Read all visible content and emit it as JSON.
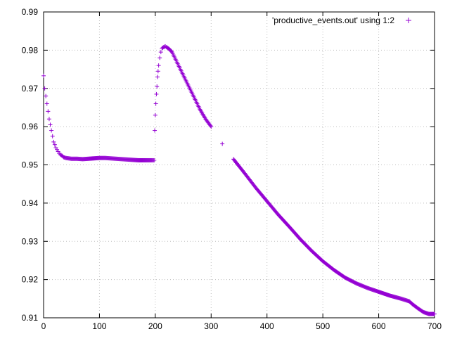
{
  "colors": {
    "series": "#9400d3",
    "grid": "#bfbfbf",
    "axis": "#000000",
    "background": "#ffffff"
  },
  "chart_data": {
    "type": "scatter",
    "title": "",
    "xlabel": "",
    "ylabel": "",
    "xlim": [
      0,
      700
    ],
    "ylim": [
      0.91,
      0.99
    ],
    "grid": true,
    "legend_position": "top-right",
    "x_ticks": [
      "0",
      "100",
      "200",
      "300",
      "400",
      "500",
      "600",
      "700"
    ],
    "y_ticks": [
      "0.91",
      "0.92",
      "0.93",
      "0.94",
      "0.95",
      "0.96",
      "0.97",
      "0.98",
      "0.99"
    ],
    "series": [
      {
        "name": "'productive_events.out' using 1:2",
        "marker": "plus",
        "x": [
          0,
          2,
          4,
          6,
          8,
          10,
          12,
          14,
          16,
          18,
          20,
          22,
          24,
          26,
          28,
          30,
          33,
          36,
          40,
          45,
          50,
          55,
          60,
          70,
          80,
          90,
          100,
          110,
          120,
          130,
          140,
          150,
          160,
          170,
          180,
          190,
          198,
          199,
          200,
          201,
          202,
          203,
          204,
          205,
          206,
          208,
          210,
          212,
          215,
          218,
          220,
          225,
          230,
          235,
          240,
          250,
          260,
          270,
          280,
          290,
          300,
          320,
          340,
          360,
          380,
          400,
          420,
          440,
          460,
          480,
          500,
          520,
          540,
          560,
          580,
          600,
          620,
          640,
          655,
          660,
          670,
          680,
          690,
          700
        ],
        "y": [
          0.9733,
          0.97,
          0.968,
          0.966,
          0.964,
          0.962,
          0.9605,
          0.959,
          0.9575,
          0.956,
          0.9553,
          0.9545,
          0.954,
          0.9535,
          0.953,
          0.9527,
          0.9524,
          0.952,
          0.9518,
          0.9517,
          0.9516,
          0.9516,
          0.9516,
          0.9515,
          0.9516,
          0.9517,
          0.9518,
          0.9518,
          0.9517,
          0.9516,
          0.9515,
          0.9514,
          0.9513,
          0.9512,
          0.9512,
          0.9512,
          0.9512,
          0.959,
          0.963,
          0.966,
          0.9685,
          0.9705,
          0.973,
          0.9745,
          0.976,
          0.978,
          0.9795,
          0.9805,
          0.9808,
          0.981,
          0.9808,
          0.9803,
          0.9795,
          0.978,
          0.9765,
          0.9735,
          0.9705,
          0.9675,
          0.9645,
          0.962,
          0.96,
          0.9555,
          0.9515,
          0.9478,
          0.944,
          0.9405,
          0.937,
          0.9338,
          0.9305,
          0.9275,
          0.9248,
          0.9225,
          0.9205,
          0.919,
          0.9178,
          0.9168,
          0.9158,
          0.915,
          0.9143,
          0.9136,
          0.9125,
          0.9115,
          0.911,
          0.911
        ]
      }
    ]
  }
}
